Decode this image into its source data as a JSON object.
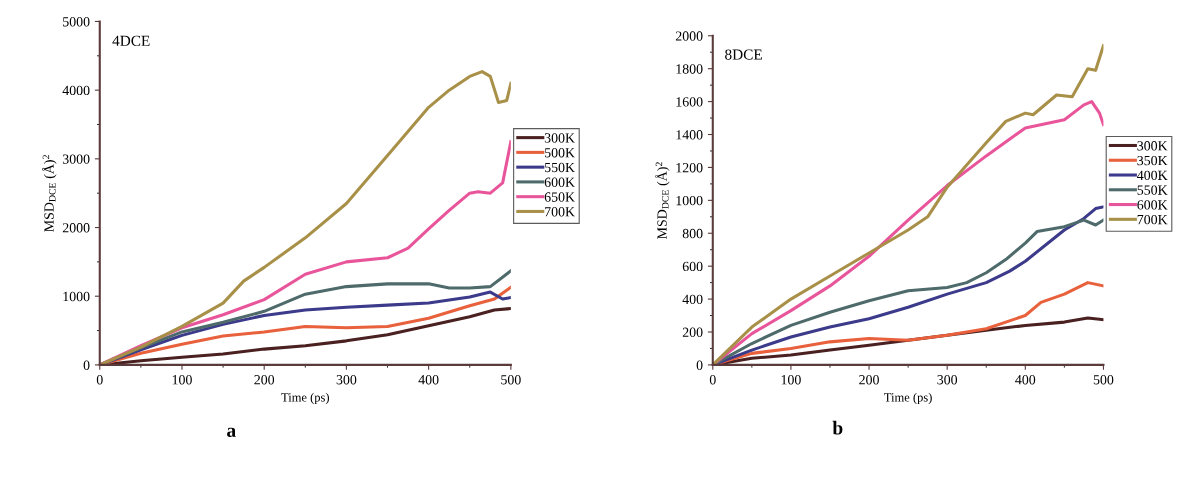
{
  "chart_data": [
    {
      "type": "line",
      "xlabel": "Time (ps)",
      "ylabel": "MSD$_{DCE}$ (Å)$^{2}$",
      "annotations": [
        "4DCE",
        "a"
      ],
      "xlim": [
        0,
        500
      ],
      "ylim": [
        0,
        5000
      ],
      "xticks": [
        0,
        100,
        200,
        300,
        400,
        500
      ],
      "yticks": [
        0,
        1000,
        2000,
        3000,
        4000,
        5000
      ],
      "grid": false,
      "legend": "right",
      "marker": "none",
      "line_style": "solid",
      "series": [
        {
          "name": "300K",
          "color": "#4a2020",
          "x": [
            0,
            50,
            100,
            150,
            200,
            250,
            300,
            350,
            400,
            450,
            480,
            500
          ],
          "values": [
            0,
            60,
            110,
            160,
            230,
            280,
            350,
            440,
            570,
            700,
            800,
            820
          ]
        },
        {
          "name": "500K",
          "color": "#e8603c",
          "x": [
            0,
            50,
            100,
            150,
            200,
            250,
            300,
            350,
            400,
            450,
            480,
            500
          ],
          "values": [
            0,
            170,
            300,
            420,
            480,
            560,
            540,
            560,
            680,
            860,
            960,
            1130
          ]
        },
        {
          "name": "550K",
          "color": "#3c3a8a",
          "x": [
            0,
            50,
            100,
            150,
            200,
            250,
            300,
            350,
            400,
            450,
            475,
            490,
            500
          ],
          "values": [
            0,
            220,
            430,
            590,
            720,
            800,
            840,
            870,
            900,
            990,
            1060,
            960,
            980
          ]
        },
        {
          "name": "600K",
          "color": "#4e6a6a",
          "x": [
            0,
            50,
            100,
            150,
            200,
            250,
            300,
            350,
            400,
            425,
            450,
            475,
            500
          ],
          "values": [
            0,
            250,
            480,
            620,
            780,
            1030,
            1140,
            1180,
            1180,
            1120,
            1120,
            1140,
            1370
          ]
        },
        {
          "name": "650K",
          "color": "#e8559a",
          "x": [
            0,
            50,
            100,
            150,
            200,
            250,
            300,
            350,
            375,
            400,
            425,
            450,
            460,
            475,
            490,
            500
          ],
          "values": [
            0,
            280,
            540,
            730,
            950,
            1320,
            1500,
            1560,
            1700,
            1980,
            2250,
            2500,
            2520,
            2500,
            2650,
            3250
          ]
        },
        {
          "name": "700K",
          "color": "#a89048",
          "x": [
            0,
            50,
            100,
            150,
            175,
            200,
            250,
            300,
            350,
            400,
            425,
            450,
            465,
            475,
            485,
            495,
            500
          ],
          "values": [
            0,
            260,
            560,
            900,
            1220,
            1420,
            1850,
            2350,
            3050,
            3750,
            4000,
            4200,
            4270,
            4200,
            3820,
            3850,
            4100
          ]
        }
      ]
    },
    {
      "type": "line",
      "xlabel": "Time (ps)",
      "ylabel": "MSD$_{DCE}$ (Å)$^{2}$",
      "annotations": [
        "8DCE",
        "b"
      ],
      "xlim": [
        0,
        500
      ],
      "ylim": [
        0,
        2000
      ],
      "xticks": [
        0,
        100,
        200,
        300,
        400,
        500
      ],
      "yticks": [
        0,
        200,
        400,
        600,
        800,
        1000,
        1200,
        1400,
        1600,
        1800,
        2000
      ],
      "grid": false,
      "legend": "right",
      "marker": "none",
      "line_style": "solid",
      "series": [
        {
          "name": "300K",
          "color": "#4a2020",
          "x": [
            0,
            50,
            100,
            150,
            200,
            250,
            300,
            350,
            400,
            450,
            480,
            500
          ],
          "values": [
            0,
            40,
            60,
            90,
            120,
            150,
            180,
            210,
            240,
            260,
            285,
            275
          ]
        },
        {
          "name": "350K",
          "color": "#e8603c",
          "x": [
            0,
            50,
            100,
            150,
            200,
            250,
            300,
            350,
            400,
            420,
            450,
            480,
            500
          ],
          "values": [
            0,
            70,
            100,
            140,
            160,
            150,
            180,
            220,
            300,
            380,
            430,
            500,
            480
          ]
        },
        {
          "name": "400K",
          "color": "#3c3a8a",
          "x": [
            0,
            50,
            100,
            150,
            200,
            250,
            300,
            350,
            380,
            400,
            450,
            475,
            490,
            500
          ],
          "values": [
            0,
            90,
            170,
            230,
            280,
            350,
            430,
            500,
            570,
            630,
            820,
            890,
            950,
            960
          ]
        },
        {
          "name": "550K",
          "color": "#4e6a6a",
          "x": [
            0,
            50,
            100,
            150,
            200,
            250,
            300,
            325,
            350,
            375,
            400,
            415,
            450,
            475,
            490,
            500
          ],
          "values": [
            0,
            130,
            240,
            320,
            390,
            450,
            470,
            500,
            560,
            640,
            740,
            810,
            840,
            880,
            850,
            880
          ]
        },
        {
          "name": "600K",
          "color": "#e8559a",
          "x": [
            0,
            50,
            100,
            150,
            200,
            250,
            300,
            350,
            400,
            450,
            475,
            485,
            495,
            500
          ],
          "values": [
            0,
            190,
            330,
            480,
            660,
            880,
            1090,
            1270,
            1440,
            1490,
            1580,
            1600,
            1530,
            1460
          ]
        },
        {
          "name": "700K",
          "color": "#a89048",
          "x": [
            0,
            50,
            100,
            150,
            200,
            250,
            275,
            300,
            350,
            375,
            400,
            410,
            440,
            460,
            480,
            490,
            500
          ],
          "values": [
            0,
            230,
            400,
            540,
            680,
            820,
            900,
            1080,
            1350,
            1480,
            1530,
            1520,
            1640,
            1630,
            1800,
            1790,
            1940
          ]
        }
      ]
    }
  ]
}
